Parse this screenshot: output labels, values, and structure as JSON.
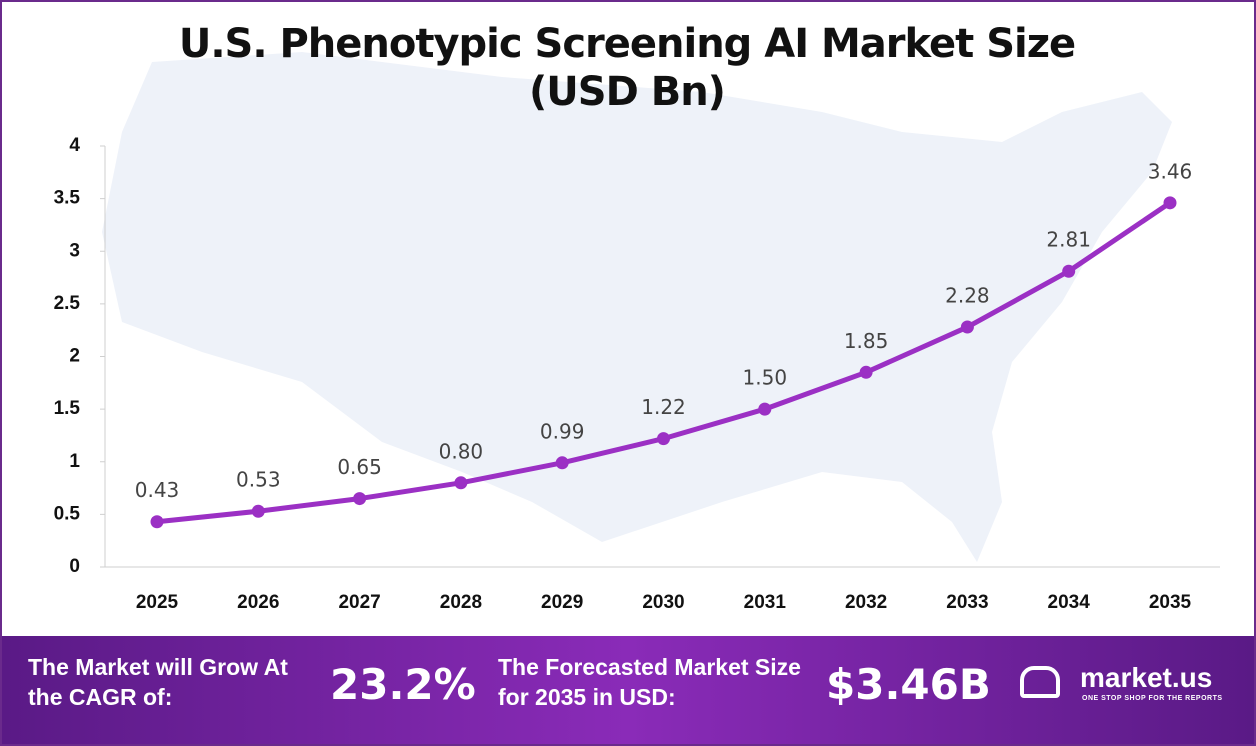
{
  "chart_data": {
    "type": "line",
    "title": "U.S. Phenotypic Screening AI Market Size (USD Bn)",
    "categories": [
      "2025",
      "2026",
      "2027",
      "2028",
      "2029",
      "2030",
      "2031",
      "2032",
      "2033",
      "2034",
      "2035"
    ],
    "series": [
      {
        "name": "Market Size",
        "color": "#9b30c4",
        "values": [
          0.43,
          0.53,
          0.65,
          0.8,
          0.99,
          1.22,
          1.5,
          1.85,
          2.28,
          2.81,
          3.46
        ],
        "value_labels": [
          "0.43",
          "0.53",
          "0.65",
          "0.80",
          "0.99",
          "1.22",
          "1.50",
          "1.85",
          "2.28",
          "2.81",
          "3.46"
        ]
      }
    ],
    "ylim": [
      0,
      4
    ],
    "yticks": [
      0,
      0.5,
      1,
      1.5,
      2,
      2.5,
      3,
      3.5,
      4
    ],
    "grid": false
  },
  "banner": {
    "cagr_label": "The Market will Grow At the CAGR of:",
    "cagr_value": "23.2%",
    "forecast_label": "The Forecasted Market Size for 2035 in USD:",
    "forecast_value": "$3.46B",
    "brand": "market.us",
    "tagline": "ONE STOP SHOP FOR THE REPORTS"
  }
}
